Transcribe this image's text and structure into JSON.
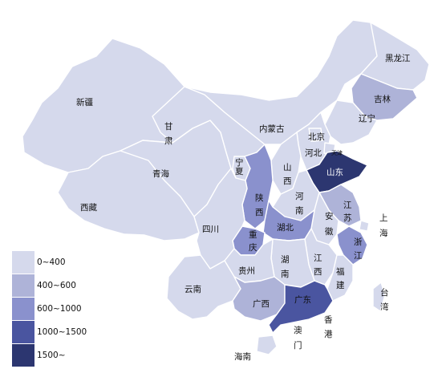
{
  "colors": {
    "c0": "#d5d9ec",
    "c1": "#aeb3d8",
    "c2": "#8a91cd",
    "c3": "#4a55a0",
    "c4": "#2c3670"
  },
  "legend": [
    {
      "label": "0~400",
      "color": "#d5d9ec"
    },
    {
      "label": "400~600",
      "color": "#aeb3d8"
    },
    {
      "label": "600~1000",
      "color": "#8a91cd"
    },
    {
      "label": "1000~1500",
      "color": "#4a55a0"
    },
    {
      "label": "1500~",
      "color": "#2c3670"
    }
  ],
  "labels": {
    "heilongjiang": "黑龙江",
    "jilin": "吉林",
    "liaoning": "辽宁",
    "xinjiang": "新疆",
    "gansu_1": "甘",
    "gansu_2": "肃",
    "neimenggu": "内蒙古",
    "beijing": "北京",
    "tianjin": "天津",
    "hebei": "河北",
    "shandong": "山东",
    "qinghai": "青海",
    "ningxia_1": "宁",
    "ningxia_2": "夏",
    "shanxi_1": "山",
    "shanxi_2": "西",
    "henan_1": "河",
    "henan_2": "南",
    "xizang": "西藏",
    "shaanxi_1": "陕",
    "shaanxi_2": "西",
    "jiangsu_1": "江",
    "jiangsu_2": "苏",
    "shanghai_1": "上",
    "shanghai_2": "海",
    "anhui_1": "安",
    "anhui_2": "徽",
    "sichuan": "四川",
    "hubei": "湖北",
    "chongqing_1": "重",
    "chongqing_2": "庆",
    "zhejiang_1": "浙",
    "zhejiang_2": "江",
    "hunan_1": "湖",
    "hunan_2": "南",
    "jiangxi_1": "江",
    "jiangxi_2": "西",
    "guizhou": "贵州",
    "fujian_1": "福",
    "fujian_2": "建",
    "yunnan": "云南",
    "taiwan_1": "台",
    "taiwan_2": "湾",
    "guangxi": "广西",
    "guangdong": "广东",
    "xianggang_1": "香",
    "xianggang_2": "港",
    "aomen_1": "澳",
    "aomen_2": "门",
    "hainan": "海南"
  }
}
